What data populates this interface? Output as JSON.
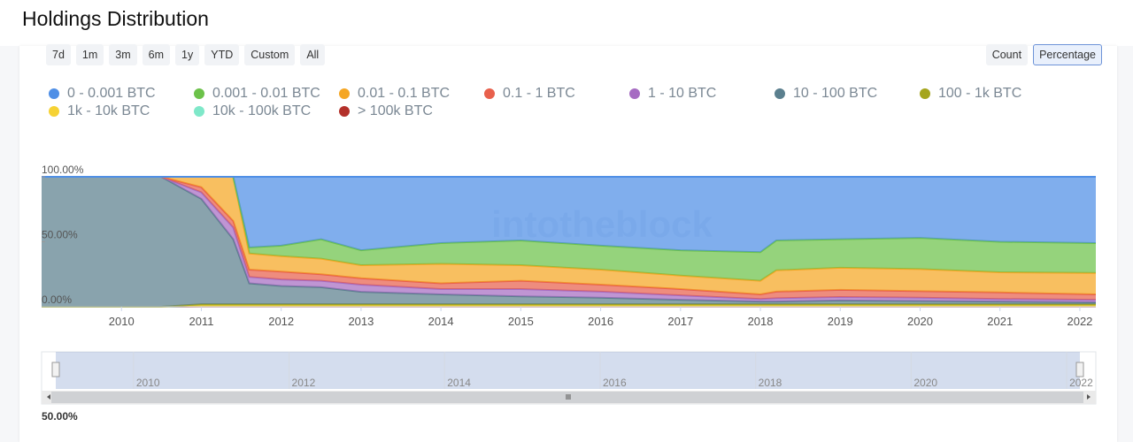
{
  "header": {
    "title": "Holdings Distribution"
  },
  "toolbar": {
    "ranges": [
      "7d",
      "1m",
      "3m",
      "6m",
      "1y",
      "YTD",
      "Custom",
      "All"
    ],
    "modes": [
      "Count",
      "Percentage"
    ],
    "selected_mode": 1
  },
  "chart_data": {
    "type": "area",
    "stacked": true,
    "watermark": "intotheblock",
    "x": [
      2009.0,
      2010.5,
      2011.0,
      2011.4,
      2011.6,
      2012.0,
      2012.5,
      2013.0,
      2014.0,
      2015.0,
      2016.0,
      2017.0,
      2018.0,
      2018.2,
      2019.0,
      2020.0,
      2021.0,
      2022.2
    ],
    "xlim": [
      2009.0,
      2022.2
    ],
    "xticks": [
      2010,
      2011,
      2012,
      2013,
      2014,
      2015,
      2016,
      2017,
      2018,
      2019,
      2020,
      2021,
      2022
    ],
    "ylim": [
      0,
      100
    ],
    "yticks": [
      {
        "value": 0,
        "label": "0.00%"
      },
      {
        "value": 50,
        "label": "50.00%"
      },
      {
        "value": 100,
        "label": "100.00%"
      }
    ],
    "series": [
      {
        "name": "0 - 0.001 BTC",
        "color": "#4f8fe6",
        "values": [
          0,
          0,
          0,
          0,
          54.4,
          53,
          48,
          56.5,
          51,
          49,
          53,
          56.5,
          58,
          49,
          48,
          47,
          50,
          51
        ]
      },
      {
        "name": "0.001 - 0.01 BTC",
        "color": "#6cc24a",
        "values": [
          0,
          0,
          0,
          0,
          4.6,
          8,
          15,
          11.5,
          16,
          19,
          18.4,
          19.5,
          22,
          23,
          22,
          24,
          23.5,
          23
        ]
      },
      {
        "name": "0.01 - 0.1 BTC",
        "color": "#f5a623",
        "values": [
          0,
          0,
          8,
          34,
          12.4,
          12,
          12,
          10,
          15,
          12,
          11.6,
          10.4,
          10.5,
          16.4,
          17,
          17,
          15.5,
          16.5
        ]
      },
      {
        "name": "0.1 - 1 BTC",
        "color": "#e8604c",
        "values": [
          0,
          0,
          4,
          5,
          5.6,
          6,
          5,
          5,
          4.4,
          6.4,
          5.4,
          4.8,
          3.5,
          5.1,
          5.5,
          5,
          5,
          4.1
        ]
      },
      {
        "name": "1 - 10 BTC",
        "color": "#a66cc2",
        "values": [
          0,
          0,
          5,
          9,
          5,
          5,
          5,
          5.5,
          4.1,
          5.6,
          4.6,
          3.4,
          2,
          2.5,
          2.7,
          2.6,
          2,
          2
        ]
      },
      {
        "name": "10 - 100 BTC",
        "color": "#5b7f8e",
        "values": [
          100,
          100,
          81,
          50,
          16,
          14,
          13,
          9.5,
          7.5,
          6,
          5,
          3.4,
          2,
          2,
          2.8,
          2.4,
          2,
          1.4
        ]
      },
      {
        "name": "100 - 1k BTC",
        "color": "#a5a51c",
        "values": [
          0,
          0,
          1,
          1,
          1,
          1,
          1,
          1,
          1,
          1,
          1,
          1,
          1,
          1,
          1,
          1,
          1,
          1
        ]
      },
      {
        "name": "1k - 10k BTC",
        "color": "#f6d234",
        "values": [
          0,
          0,
          0.5,
          0.5,
          0.5,
          0.5,
          0.5,
          0.5,
          0.5,
          0.5,
          0.5,
          0.5,
          0.5,
          0.5,
          0.5,
          0.5,
          0.5,
          0.5
        ]
      },
      {
        "name": "10k - 100k BTC",
        "color": "#7fe8c9",
        "values": [
          0,
          0,
          0.3,
          0.3,
          0.3,
          0.3,
          0.3,
          0.3,
          0.3,
          0.3,
          0.3,
          0.3,
          0.3,
          0.3,
          0.3,
          0.3,
          0.3,
          0.3
        ]
      },
      {
        "name": "> 100k BTC",
        "color": "#b3302a",
        "values": [
          0,
          0,
          0.2,
          0.2,
          0.2,
          0.2,
          0.2,
          0.2,
          0.2,
          0.2,
          0.2,
          0.2,
          0.2,
          0.2,
          0.2,
          0.2,
          0.2,
          0.2
        ]
      }
    ]
  },
  "navigator": {
    "xlim": [
      2009.0,
      2022.17
    ],
    "xticks": [
      2010,
      2012,
      2014,
      2016,
      2018,
      2020,
      2022
    ]
  },
  "footer": {
    "label": "50.00%"
  }
}
